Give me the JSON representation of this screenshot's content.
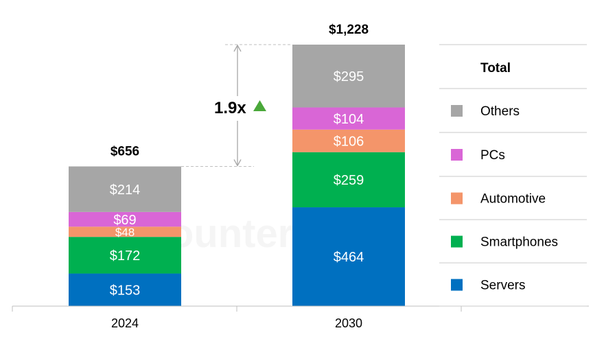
{
  "chart_data": {
    "type": "bar",
    "stacked": true,
    "categories": [
      "2024",
      "2030"
    ],
    "totals": [
      656,
      1228
    ],
    "total_labels": [
      "$656",
      "$1,228"
    ],
    "series": [
      {
        "name": "Servers",
        "values": [
          153,
          464
        ],
        "labels": [
          "$153",
          "$464"
        ],
        "color": "#0070c0"
      },
      {
        "name": "Smartphones",
        "values": [
          172,
          259
        ],
        "labels": [
          "$172",
          "$259"
        ],
        "color": "#00b050"
      },
      {
        "name": "Automotive",
        "values": [
          48,
          106
        ],
        "labels": [
          "$48",
          "$106"
        ],
        "color": "#f4956a"
      },
      {
        "name": "PCs",
        "values": [
          69,
          104
        ],
        "labels": [
          "$69",
          "$104"
        ],
        "color": "#d966d6"
      },
      {
        "name": "Others",
        "values": [
          214,
          295
        ],
        "labels": [
          "$214",
          "$295"
        ],
        "color": "#a6a6a6"
      }
    ],
    "legend": {
      "position": "right",
      "header": "Total",
      "order": [
        "Others",
        "PCs",
        "Automotive",
        "Smartphones",
        "Servers"
      ]
    },
    "annotation": {
      "text": "1.9x",
      "marker": "up-triangle-icon",
      "marker_color": "#4aa83a"
    },
    "ylim": [
      0,
      1228
    ],
    "grid": false,
    "xlabel": "",
    "ylabel": "",
    "title": ""
  },
  "watermark": "Counterpoint"
}
